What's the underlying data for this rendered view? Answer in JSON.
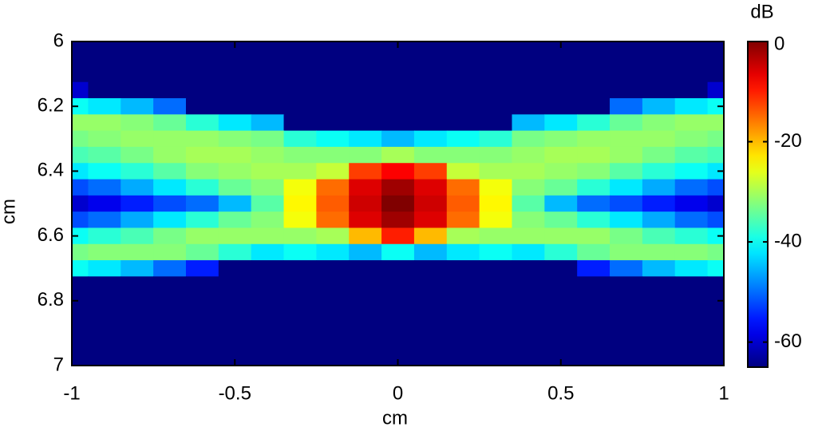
{
  "chart_data": {
    "type": "heatmap",
    "xlabel": "cm",
    "ylabel": "cm",
    "colorbar_label": "dB",
    "colormap": "jet",
    "xlim": [
      -1,
      1
    ],
    "xticks": [
      -1,
      -0.5,
      0,
      0.5,
      1
    ],
    "ylim": [
      6,
      7
    ],
    "yticks": [
      6,
      6.2,
      6.4,
      6.6,
      6.8,
      7
    ],
    "yreverse": true,
    "clim": [
      -65,
      0
    ],
    "cticks": [
      0,
      -20,
      -40,
      -60
    ],
    "x": [
      -1,
      -0.9,
      -0.8,
      -0.7,
      -0.6,
      -0.5,
      -0.4,
      -0.3,
      -0.2,
      -0.1,
      0,
      0.1,
      0.2,
      0.3,
      0.4,
      0.5,
      0.6,
      0.7,
      0.8,
      0.9,
      1
    ],
    "y": [
      6,
      6.05,
      6.1,
      6.15,
      6.2,
      6.25,
      6.3,
      6.35,
      6.4,
      6.45,
      6.5,
      6.55,
      6.6,
      6.65,
      6.7,
      6.75,
      6.8,
      6.85,
      6.9,
      6.95,
      7
    ],
    "z": [
      [
        -65,
        -65,
        -65,
        -65,
        -65,
        -65,
        -65,
        -65,
        -65,
        -65,
        -65,
        -65,
        -65,
        -65,
        -65,
        -65,
        -65,
        -65,
        -65,
        -65,
        -65
      ],
      [
        -65,
        -65,
        -65,
        -65,
        -65,
        -65,
        -65,
        -65,
        -65,
        -65,
        -65,
        -65,
        -65,
        -65,
        -65,
        -65,
        -65,
        -65,
        -65,
        -65,
        -65
      ],
      [
        -65,
        -65,
        -65,
        -65,
        -65,
        -65,
        -65,
        -65,
        -65,
        -65,
        -65,
        -65,
        -65,
        -65,
        -65,
        -65,
        -65,
        -65,
        -65,
        -65,
        -65
      ],
      [
        -60,
        -65,
        -65,
        -65,
        -65,
        -65,
        -65,
        -65,
        -65,
        -65,
        -65,
        -65,
        -65,
        -65,
        -65,
        -65,
        -65,
        -65,
        -65,
        -65,
        -60
      ],
      [
        -40,
        -42,
        -45,
        -50,
        -65,
        -65,
        -65,
        -65,
        -65,
        -65,
        -65,
        -65,
        -65,
        -65,
        -65,
        -65,
        -65,
        -50,
        -45,
        -42,
        -40
      ],
      [
        -31,
        -31,
        -32,
        -34,
        -38,
        -42,
        -45,
        -65,
        -65,
        -65,
        -65,
        -65,
        -65,
        -65,
        -45,
        -42,
        -38,
        -34,
        -32,
        -31,
        -31
      ],
      [
        -33,
        -32,
        -31,
        -31,
        -31,
        -32,
        -33,
        -38,
        -40,
        -42,
        -45,
        -42,
        -40,
        -38,
        -33,
        -32,
        -31,
        -31,
        -31,
        -32,
        -33
      ],
      [
        -36,
        -35,
        -33,
        -31,
        -30,
        -30,
        -31,
        -32,
        -32,
        -32,
        -30,
        -32,
        -32,
        -32,
        -31,
        -30,
        -30,
        -31,
        -33,
        -35,
        -36
      ],
      [
        -42,
        -40,
        -38,
        -35,
        -32,
        -31,
        -30,
        -30,
        -28,
        -12,
        -8,
        -12,
        -28,
        -30,
        -30,
        -31,
        -32,
        -35,
        -38,
        -40,
        -42
      ],
      [
        -52,
        -50,
        -46,
        -42,
        -38,
        -34,
        -32,
        -25,
        -15,
        -6,
        -2,
        -6,
        -15,
        -25,
        -32,
        -34,
        -38,
        -42,
        -46,
        -50,
        -52
      ],
      [
        -60,
        -58,
        -55,
        -52,
        -50,
        -45,
        -35,
        -24,
        -14,
        -5,
        0,
        -5,
        -14,
        -24,
        -35,
        -45,
        -50,
        -52,
        -55,
        -58,
        -60
      ],
      [
        -52,
        -50,
        -46,
        -42,
        -38,
        -34,
        -32,
        -25,
        -15,
        -6,
        -2,
        -6,
        -15,
        -25,
        -32,
        -34,
        -38,
        -42,
        -46,
        -50,
        -52
      ],
      [
        -40,
        -38,
        -36,
        -33,
        -31,
        -31,
        -31,
        -31,
        -30,
        -20,
        -10,
        -20,
        -30,
        -31,
        -31,
        -31,
        -31,
        -33,
        -36,
        -38,
        -40
      ],
      [
        -33,
        -32,
        -32,
        -32,
        -34,
        -38,
        -42,
        -40,
        -42,
        -45,
        -40,
        -45,
        -42,
        -40,
        -42,
        -38,
        -34,
        -32,
        -32,
        -32,
        -33
      ],
      [
        -40,
        -42,
        -45,
        -50,
        -55,
        -65,
        -65,
        -65,
        -65,
        -65,
        -65,
        -65,
        -65,
        -65,
        -65,
        -65,
        -55,
        -50,
        -45,
        -42,
        -40
      ],
      [
        -65,
        -65,
        -65,
        -65,
        -65,
        -65,
        -65,
        -65,
        -65,
        -65,
        -65,
        -65,
        -65,
        -65,
        -65,
        -65,
        -65,
        -65,
        -65,
        -65,
        -65
      ],
      [
        -65,
        -65,
        -65,
        -65,
        -65,
        -65,
        -65,
        -65,
        -65,
        -65,
        -65,
        -65,
        -65,
        -65,
        -65,
        -65,
        -65,
        -65,
        -65,
        -65,
        -65
      ],
      [
        -65,
        -65,
        -65,
        -65,
        -65,
        -65,
        -65,
        -65,
        -65,
        -65,
        -65,
        -65,
        -65,
        -65,
        -65,
        -65,
        -65,
        -65,
        -65,
        -65,
        -65
      ],
      [
        -65,
        -65,
        -65,
        -65,
        -65,
        -65,
        -65,
        -65,
        -65,
        -65,
        -65,
        -65,
        -65,
        -65,
        -65,
        -65,
        -65,
        -65,
        -65,
        -65,
        -65
      ],
      [
        -65,
        -65,
        -65,
        -65,
        -65,
        -65,
        -65,
        -65,
        -65,
        -65,
        -65,
        -65,
        -65,
        -65,
        -65,
        -65,
        -65,
        -65,
        -65,
        -65,
        -65
      ],
      [
        -65,
        -65,
        -65,
        -65,
        -65,
        -65,
        -65,
        -65,
        -65,
        -65,
        -65,
        -65,
        -65,
        -65,
        -65,
        -65,
        -65,
        -65,
        -65,
        -65,
        -65
      ]
    ]
  }
}
